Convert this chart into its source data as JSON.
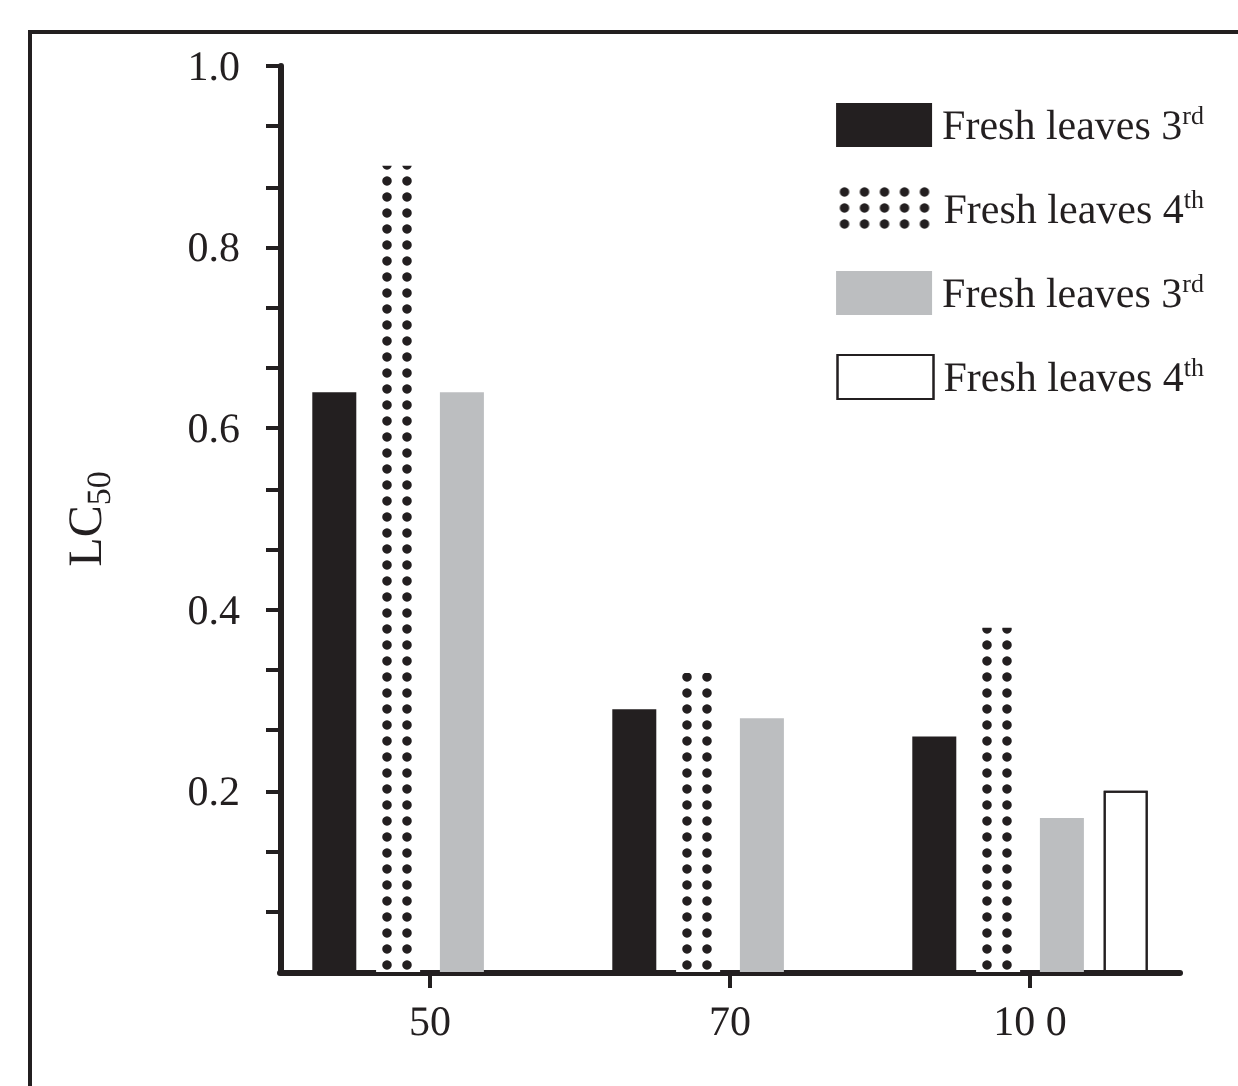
{
  "chart_data": {
    "type": "bar",
    "ylabel": "LC$_{50}$",
    "categories": [
      "50",
      "70",
      "10 0"
    ],
    "series": [
      {
        "name": "Fresh leaves 3$^{rd}$",
        "color": "#231f20",
        "values": [
          0.64,
          0.29,
          0.26
        ]
      },
      {
        "name": "Fresh leaves 4$^{th}$",
        "color": "#231f20",
        "values": [
          0.89,
          0.33,
          0.38
        ]
      },
      {
        "name": "Fresh leaves 3$^{rd}$",
        "color": "#bcbec0",
        "values": [
          0.64,
          0.28,
          0.17
        ]
      },
      {
        "name": "Fresh leaves 4$^{th}$",
        "color": "#ffffff",
        "values": [
          null,
          null,
          0.2
        ]
      }
    ],
    "ylim": [
      0,
      1
    ],
    "yticks": [
      {
        "value": 0.0667,
        "label": null
      },
      {
        "value": 0.1333,
        "label": null
      },
      0.2,
      {
        "value": 0.2667,
        "label": null
      },
      {
        "value": 0.3333,
        "label": null
      },
      0.4,
      {
        "value": 0.4667,
        "label": null
      },
      {
        "value": 0.5333,
        "label": null
      },
      0.6,
      {
        "value": 0.6667,
        "label": null
      },
      {
        "value": 0.7333,
        "label": null
      },
      0.8,
      {
        "value": 0.8667,
        "label": null
      },
      {
        "value": 0.9333,
        "label": null
      },
      {
        "value": 1,
        "label": "1.0"
      }
    ],
    "legend": "top right",
    "grid": false
  }
}
